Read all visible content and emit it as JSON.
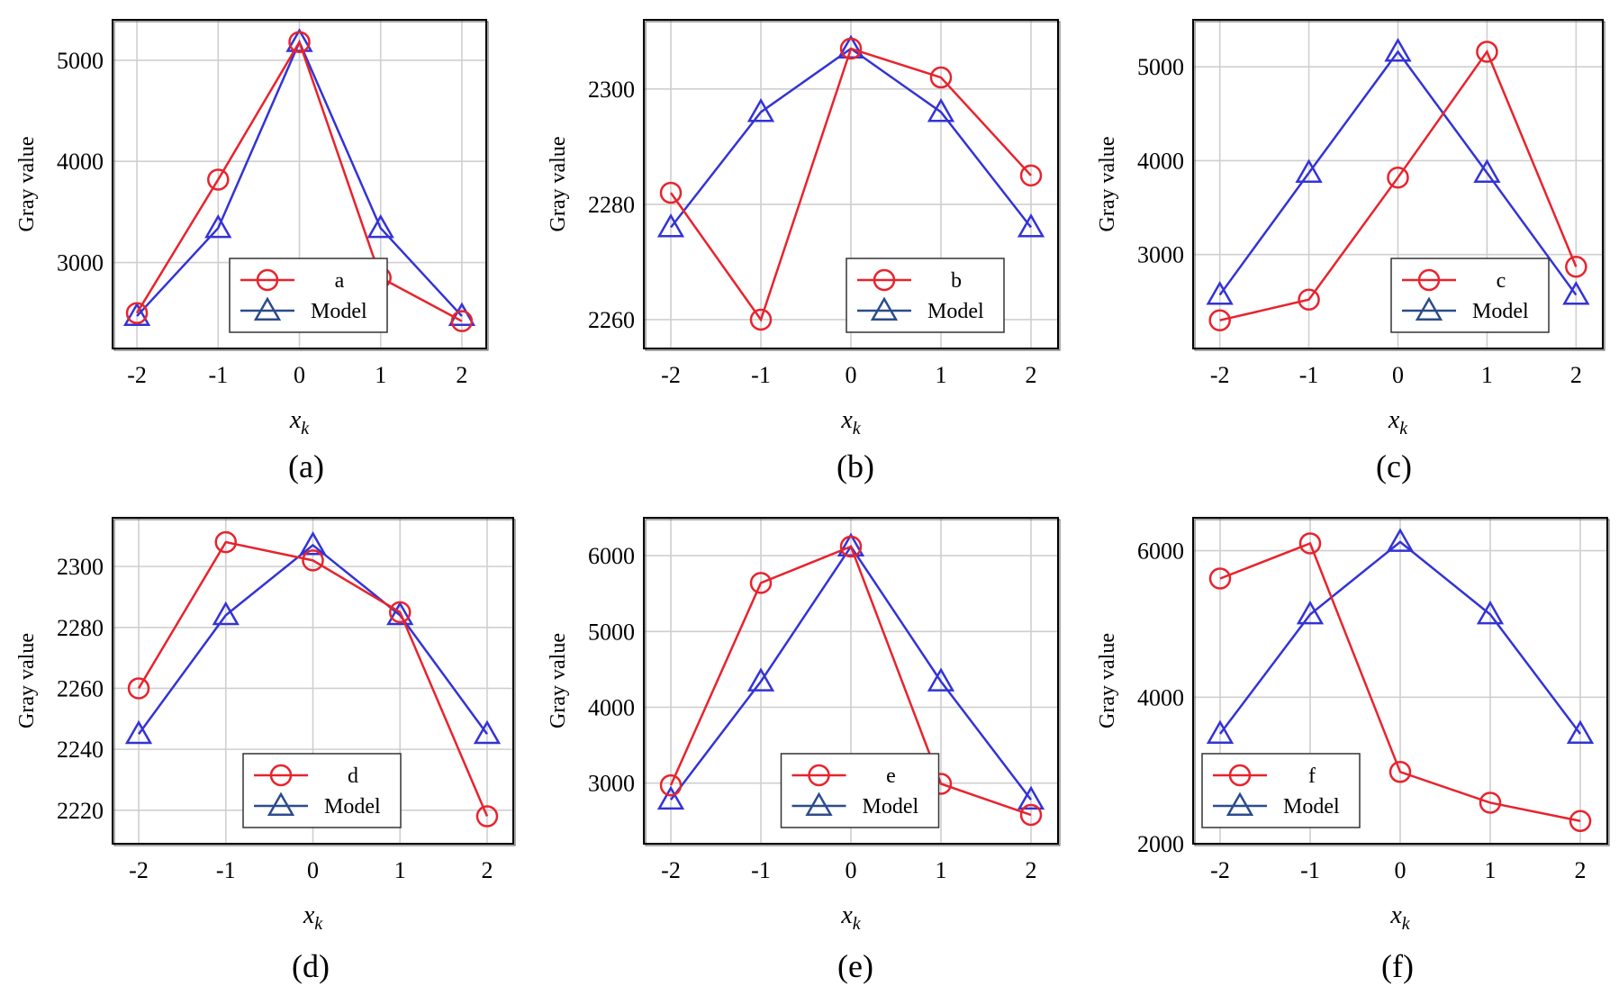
{
  "colors": {
    "observed": "#e8232d",
    "model": "#3333d6",
    "model_legend": "#2b4c8c",
    "grid": "#cfcfcf"
  },
  "chart_data": [
    {
      "type": "line",
      "caption": "(a)",
      "xlabel": "x",
      "xlabel_sub": "k",
      "ylabel": "Gray value",
      "x": [
        -2,
        -1,
        0,
        1,
        2
      ],
      "xlim": [
        -2.3,
        2.3
      ],
      "ylim": [
        2150,
        5400
      ],
      "yticks": [
        3000,
        4000,
        5000
      ],
      "legend": "bottom-center",
      "series": [
        {
          "name": "a",
          "marker": "circle",
          "values": [
            2500,
            3820,
            5180,
            2850,
            2420
          ]
        },
        {
          "name": "Model",
          "marker": "triangle",
          "values": [
            2470,
            3340,
            5180,
            3340,
            2470
          ]
        }
      ]
    },
    {
      "type": "line",
      "caption": "(b)",
      "xlabel": "x",
      "xlabel_sub": "k",
      "ylabel": "Gray value",
      "x": [
        -2,
        -1,
        0,
        1,
        2
      ],
      "xlim": [
        -2.3,
        2.3
      ],
      "ylim": [
        2255,
        2312
      ],
      "yticks": [
        2260,
        2280,
        2300
      ],
      "legend": "bottom-right",
      "series": [
        {
          "name": "b",
          "marker": "circle",
          "values": [
            2282,
            2260,
            2307,
            2302,
            2285
          ]
        },
        {
          "name": "Model",
          "marker": "triangle",
          "values": [
            2276,
            2296,
            2307,
            2296,
            2276
          ]
        }
      ]
    },
    {
      "type": "line",
      "caption": "(c)",
      "xlabel": "x",
      "xlabel_sub": "k",
      "ylabel": "Gray value",
      "x": [
        -2,
        -1,
        0,
        1,
        2
      ],
      "xlim": [
        -2.3,
        2.3
      ],
      "ylim": [
        2000,
        5500
      ],
      "yticks": [
        3000,
        4000,
        5000
      ],
      "legend": "bottom-right",
      "series": [
        {
          "name": "c",
          "marker": "circle",
          "values": [
            2300,
            2520,
            3820,
            5160,
            2870
          ]
        },
        {
          "name": "Model",
          "marker": "triangle",
          "values": [
            2570,
            3870,
            5160,
            3870,
            2570
          ]
        }
      ]
    },
    {
      "type": "line",
      "caption": "(d)",
      "xlabel": "x",
      "xlabel_sub": "k",
      "ylabel": "Gray value",
      "x": [
        -2,
        -1,
        0,
        1,
        2
      ],
      "xlim": [
        -2.3,
        2.3
      ],
      "ylim": [
        2209,
        2316
      ],
      "yticks": [
        2220,
        2240,
        2260,
        2280,
        2300
      ],
      "legend": "bottom-center",
      "series": [
        {
          "name": "d",
          "marker": "circle",
          "values": [
            2260,
            2308,
            2302,
            2285,
            2218
          ]
        },
        {
          "name": "Model",
          "marker": "triangle",
          "values": [
            2245,
            2284,
            2307,
            2284,
            2245
          ]
        }
      ]
    },
    {
      "type": "line",
      "caption": "(e)",
      "xlabel": "x",
      "xlabel_sub": "k",
      "ylabel": "Gray value",
      "x": [
        -2,
        -1,
        0,
        1,
        2
      ],
      "xlim": [
        -2.3,
        2.3
      ],
      "ylim": [
        2200,
        6500
      ],
      "yticks": [
        3000,
        4000,
        5000,
        6000
      ],
      "legend": "bottom-center",
      "series": [
        {
          "name": "e",
          "marker": "circle",
          "values": [
            2970,
            5640,
            6120,
            2990,
            2580
          ]
        },
        {
          "name": "Model",
          "marker": "triangle",
          "values": [
            2780,
            4340,
            6120,
            4340,
            2780
          ]
        }
      ]
    },
    {
      "type": "line",
      "caption": "(f)",
      "xlabel": "x",
      "xlabel_sub": "k",
      "ylabel": "Gray value",
      "x": [
        -2,
        -1,
        0,
        1,
        2
      ],
      "xlim": [
        -2.3,
        2.3
      ],
      "ylim": [
        2000,
        6450
      ],
      "yticks": [
        2000,
        4000,
        6000
      ],
      "legend": "bottom-left",
      "series": [
        {
          "name": "f",
          "marker": "circle",
          "values": [
            5620,
            6100,
            2980,
            2560,
            2310
          ]
        },
        {
          "name": "Model",
          "marker": "triangle",
          "values": [
            3500,
            5130,
            6120,
            5130,
            3500
          ]
        }
      ]
    }
  ]
}
